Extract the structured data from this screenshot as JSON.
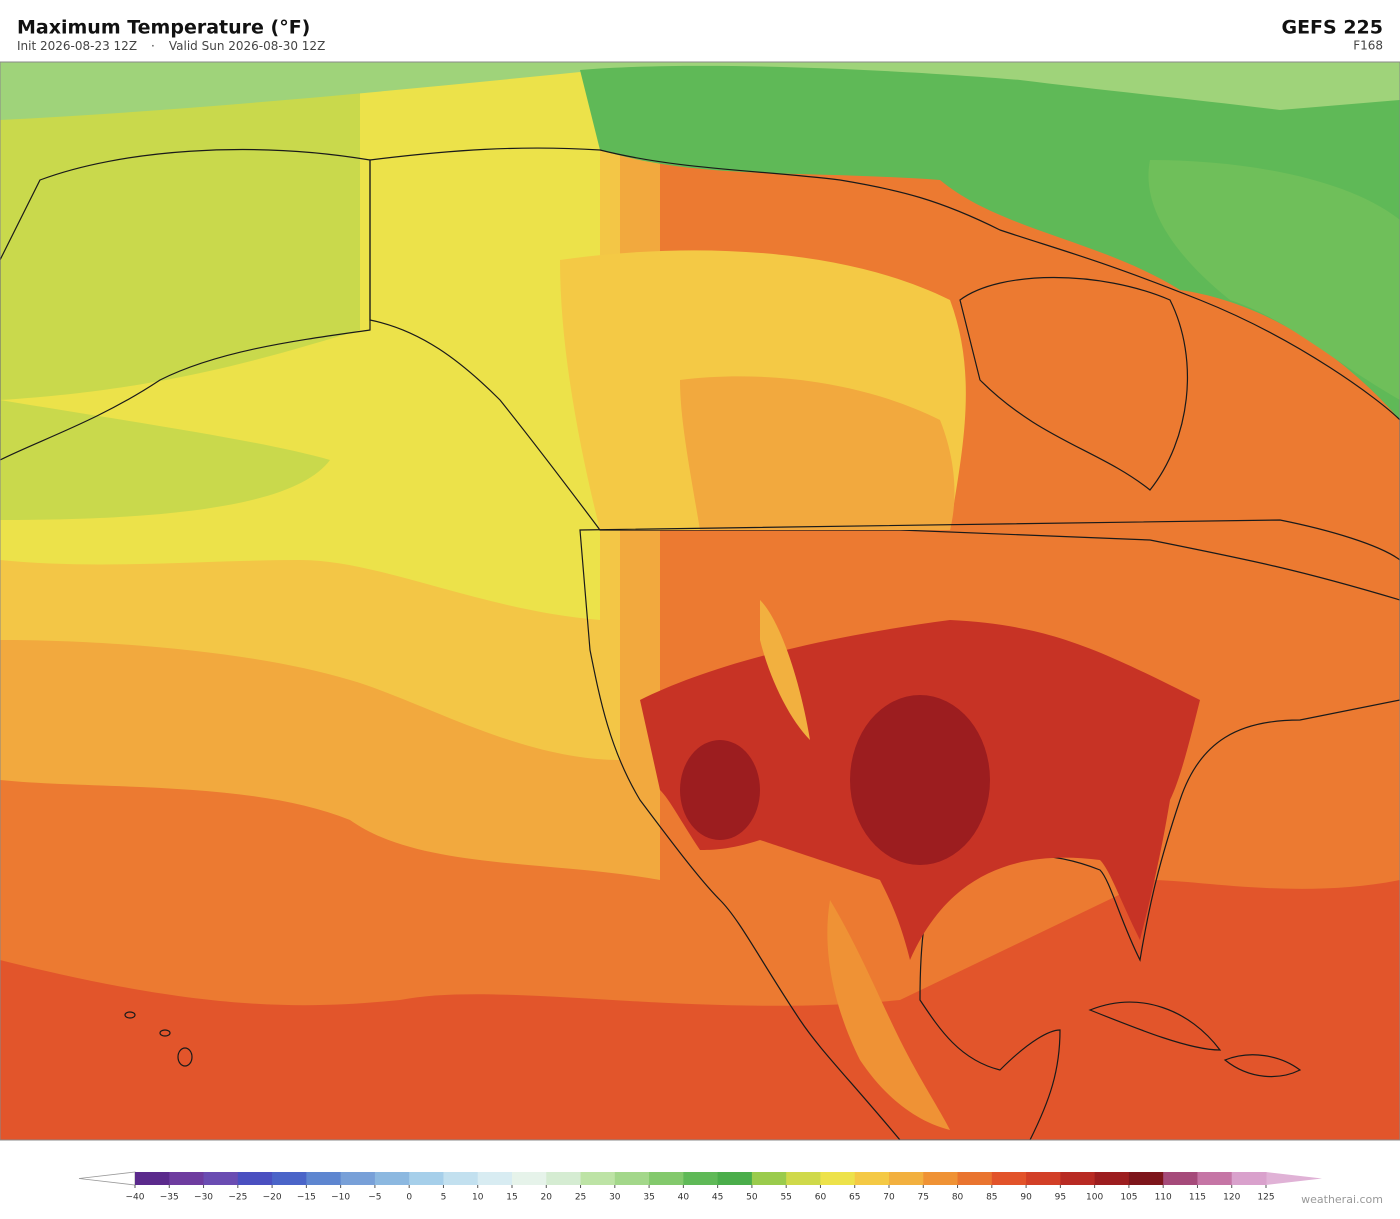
{
  "header": {
    "title": "Maximum Temperature  (°F)",
    "init": "Init 2026-08-23 12Z",
    "separator": "·",
    "valid": "Valid Sun 2026-08-30 12Z",
    "model": "GEFS  225",
    "forecast_hour": "F168"
  },
  "colorbar": {
    "ticks": [
      {
        "value": -40,
        "label": "−40"
      },
      {
        "value": -35,
        "label": "−35"
      },
      {
        "value": -30,
        "label": "−30"
      },
      {
        "value": -25,
        "label": "−25"
      },
      {
        "value": -20,
        "label": "−20"
      },
      {
        "value": -15,
        "label": "−15"
      },
      {
        "value": -10,
        "label": "−10"
      },
      {
        "value": -5,
        "label": "−5"
      },
      0,
      5,
      10,
      15,
      20,
      25,
      30,
      35,
      40,
      45,
      50,
      55,
      60,
      65,
      70,
      75,
      80,
      85,
      90,
      95,
      100,
      105,
      110,
      115,
      120,
      125
    ],
    "colors": [
      "#5b2a8c",
      "#6e3c9f",
      "#6a4cb2",
      "#4a4fc0",
      "#4a64c8",
      "#5e86d0",
      "#78a0d8",
      "#8cb8e0",
      "#a6cfea",
      "#c2e0ef",
      "#d8ecf2",
      "#e6f3ea",
      "#d5ecd2",
      "#bde3a5",
      "#a3d78a",
      "#83c96c",
      "#5fb957",
      "#4aad4a",
      "#9acb4c",
      "#cfd94a",
      "#ede24a",
      "#f4c945",
      "#f2b03f",
      "#ef9235",
      "#e9742f",
      "#e2532a",
      "#d23f27",
      "#b82a23",
      "#9c1d1f",
      "#7d151b",
      "#a54a7a",
      "#c575a5",
      "#d9a1cc"
    ],
    "under_color": "#ffffff",
    "over_color": "#e0b2d6"
  },
  "footer": {
    "credit": "weatherai.com"
  }
}
